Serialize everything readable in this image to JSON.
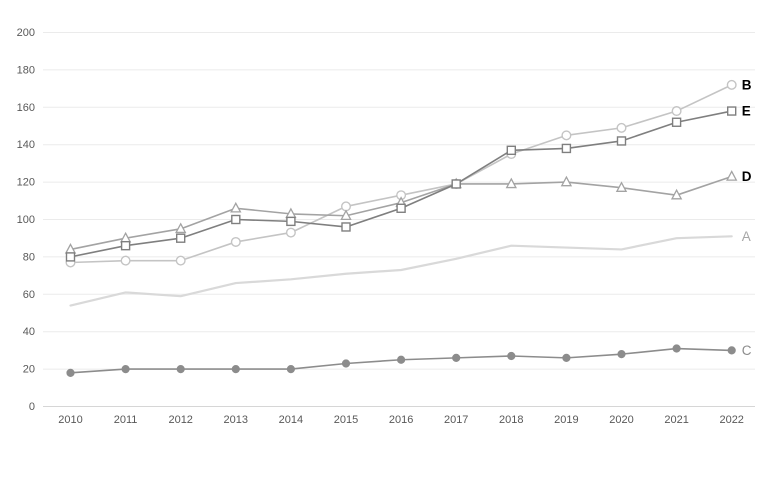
{
  "chart_data": {
    "type": "line",
    "title": "",
    "xlabel": "",
    "ylabel": "",
    "x": [
      "2010",
      "2011",
      "2012",
      "2013",
      "2014",
      "2015",
      "2016",
      "2017",
      "2018",
      "2019",
      "2020",
      "2021",
      "2022"
    ],
    "ylim": [
      0,
      200
    ],
    "y_ticks": [
      0,
      20,
      40,
      60,
      80,
      100,
      120,
      140,
      160,
      180,
      200
    ],
    "grid": true,
    "legend_position": "end-of-line-labels-right",
    "series": [
      {
        "name": "A",
        "values": [
          54,
          61,
          59,
          66,
          68,
          71,
          73,
          79,
          86,
          85,
          84,
          90,
          91
        ],
        "color": "#d9d9d9",
        "marker": "none",
        "line_width": 2.2,
        "label_color": "#a6a6a6",
        "label_bold": false
      },
      {
        "name": "B",
        "values": [
          77,
          78,
          78,
          88,
          93,
          107,
          113,
          119,
          135,
          145,
          149,
          158,
          172
        ],
        "color": "#c4c4c4",
        "marker": "circle-open",
        "line_width": 1.6,
        "label_color": "#000000",
        "label_bold": true
      },
      {
        "name": "C",
        "values": [
          18,
          20,
          20,
          20,
          20,
          23,
          25,
          26,
          27,
          26,
          28,
          31,
          30
        ],
        "color": "#8c8c8c",
        "marker": "circle-filled",
        "line_width": 1.6,
        "label_color": "#8c8c8c",
        "label_bold": false
      },
      {
        "name": "D",
        "values": [
          84,
          90,
          95,
          106,
          103,
          102,
          109,
          119,
          119,
          120,
          117,
          113,
          123
        ],
        "color": "#a3a3a3",
        "marker": "triangle-open",
        "line_width": 1.6,
        "label_color": "#000000",
        "label_bold": true
      },
      {
        "name": "E",
        "values": [
          80,
          86,
          90,
          100,
          99,
          96,
          106,
          119,
          137,
          138,
          142,
          152,
          158
        ],
        "color": "#7f7f7f",
        "marker": "square-open",
        "line_width": 1.6,
        "label_color": "#000000",
        "label_bold": true
      }
    ],
    "colors": {
      "background": "#ffffff",
      "gridline": "#ebebeb",
      "axis_line": "#d6d6d6",
      "tick_label": "#595959"
    }
  }
}
